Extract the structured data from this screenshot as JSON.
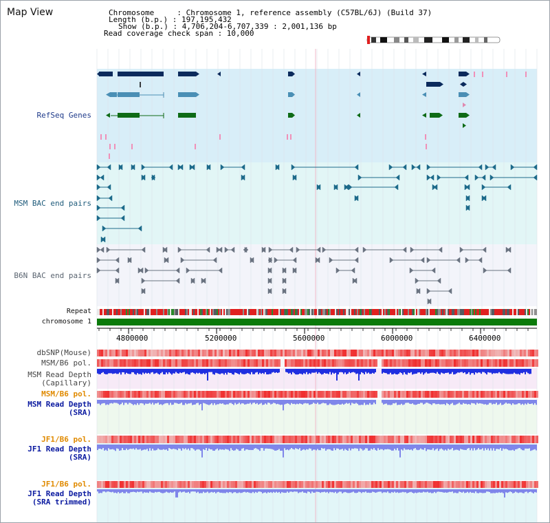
{
  "view_title": "Map View",
  "info": {
    "chromosome": "Chromosome     : Chromosome 1, reference assembly (C57BL/6J) (Build 37)",
    "length": "Length (b.p.) : 197,195,432",
    "show": "Show (b.p.) : 4,706,204-6,707,339 : 2,001,136 bp",
    "coverage": "Read coverage check span : 10,000"
  },
  "tracks": {
    "refseq": "RefSeq Genes",
    "msm_bac": "MSM BAC end pairs",
    "b6n_bac": "B6N BAC end pairs",
    "repeat": "Repeat",
    "chromosome": "chromosome 1",
    "dbsnp": "dbSNP(Mouse)",
    "msm_b6_pol_1": "MSM/B6 pol.",
    "msm_depth_cap_1": "MSM Read Depth",
    "msm_depth_cap_2": "(Capillary)",
    "msm_b6_pol_2": "MSM/B6 pol.",
    "msm_depth_sra_1": "MSM Read Depth",
    "msm_depth_sra_2": "(SRA)",
    "jf1_b6_pol_1": "JF1/B6 pol.",
    "jf1_depth_sra_1": "JF1 Read Depth",
    "jf1_depth_sra_2": "(SRA)",
    "jf1_b6_pol_2": "JF1/B6 pol.",
    "jf1_depth_trim_1": "JF1 Read Depth",
    "jf1_depth_trim_2": "(SRA trimmed)"
  },
  "axis": {
    "ticks": [
      "4800000",
      "5200000",
      "5600000",
      "6000000",
      "6400000"
    ]
  },
  "colors": {
    "refseq_bg": "#d8eef8",
    "bac_bg": "#e2f6f6",
    "gene_dark": "#0b2a5c",
    "gene_mid": "#4a8fb5",
    "gene_green": "#0e6b16",
    "chromosome_bar": "#0a7a0a",
    "depth_blue": "#1f2fe0",
    "depth_light": "#7f86ea",
    "pol_red": "#e83030"
  }
}
